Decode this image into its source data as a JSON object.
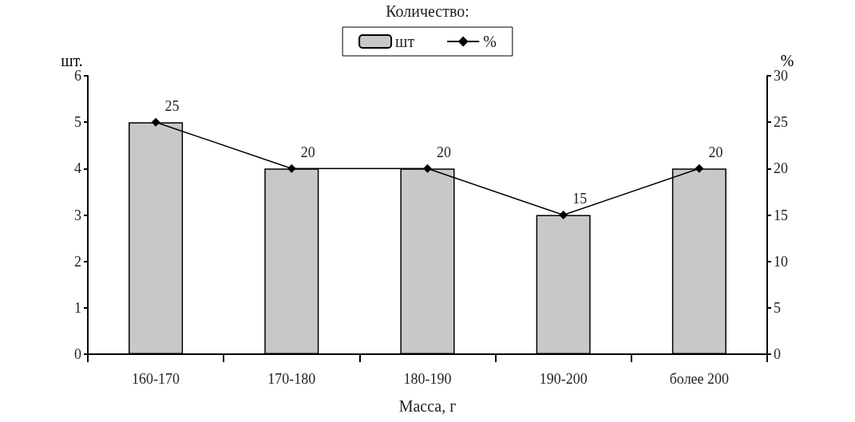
{
  "chart_data": {
    "type": "bar",
    "xlabel": "Масса, г",
    "ylabel": "шт.",
    "y2label": "%",
    "legend_title": "Количество:",
    "categories": [
      "160-170",
      "170-180",
      "180-190",
      "190-200",
      "более 200"
    ],
    "series": [
      {
        "name": "шт",
        "color": "#c8c8c8",
        "values": [
          5,
          4,
          4,
          3,
          4
        ]
      },
      {
        "name": "%",
        "type": "line",
        "axis": "y2",
        "color": "#000000",
        "values": [
          25,
          20,
          20,
          15,
          20
        ],
        "marker": "diamond",
        "data_labels": true
      }
    ],
    "ylim": [
      0,
      6
    ],
    "yticks": [
      0,
      1,
      2,
      3,
      4,
      5,
      6
    ],
    "y2lim": [
      0,
      30
    ],
    "y2ticks": [
      0,
      5,
      10,
      15,
      20,
      25,
      30
    ],
    "grid": false,
    "legend": "top"
  }
}
